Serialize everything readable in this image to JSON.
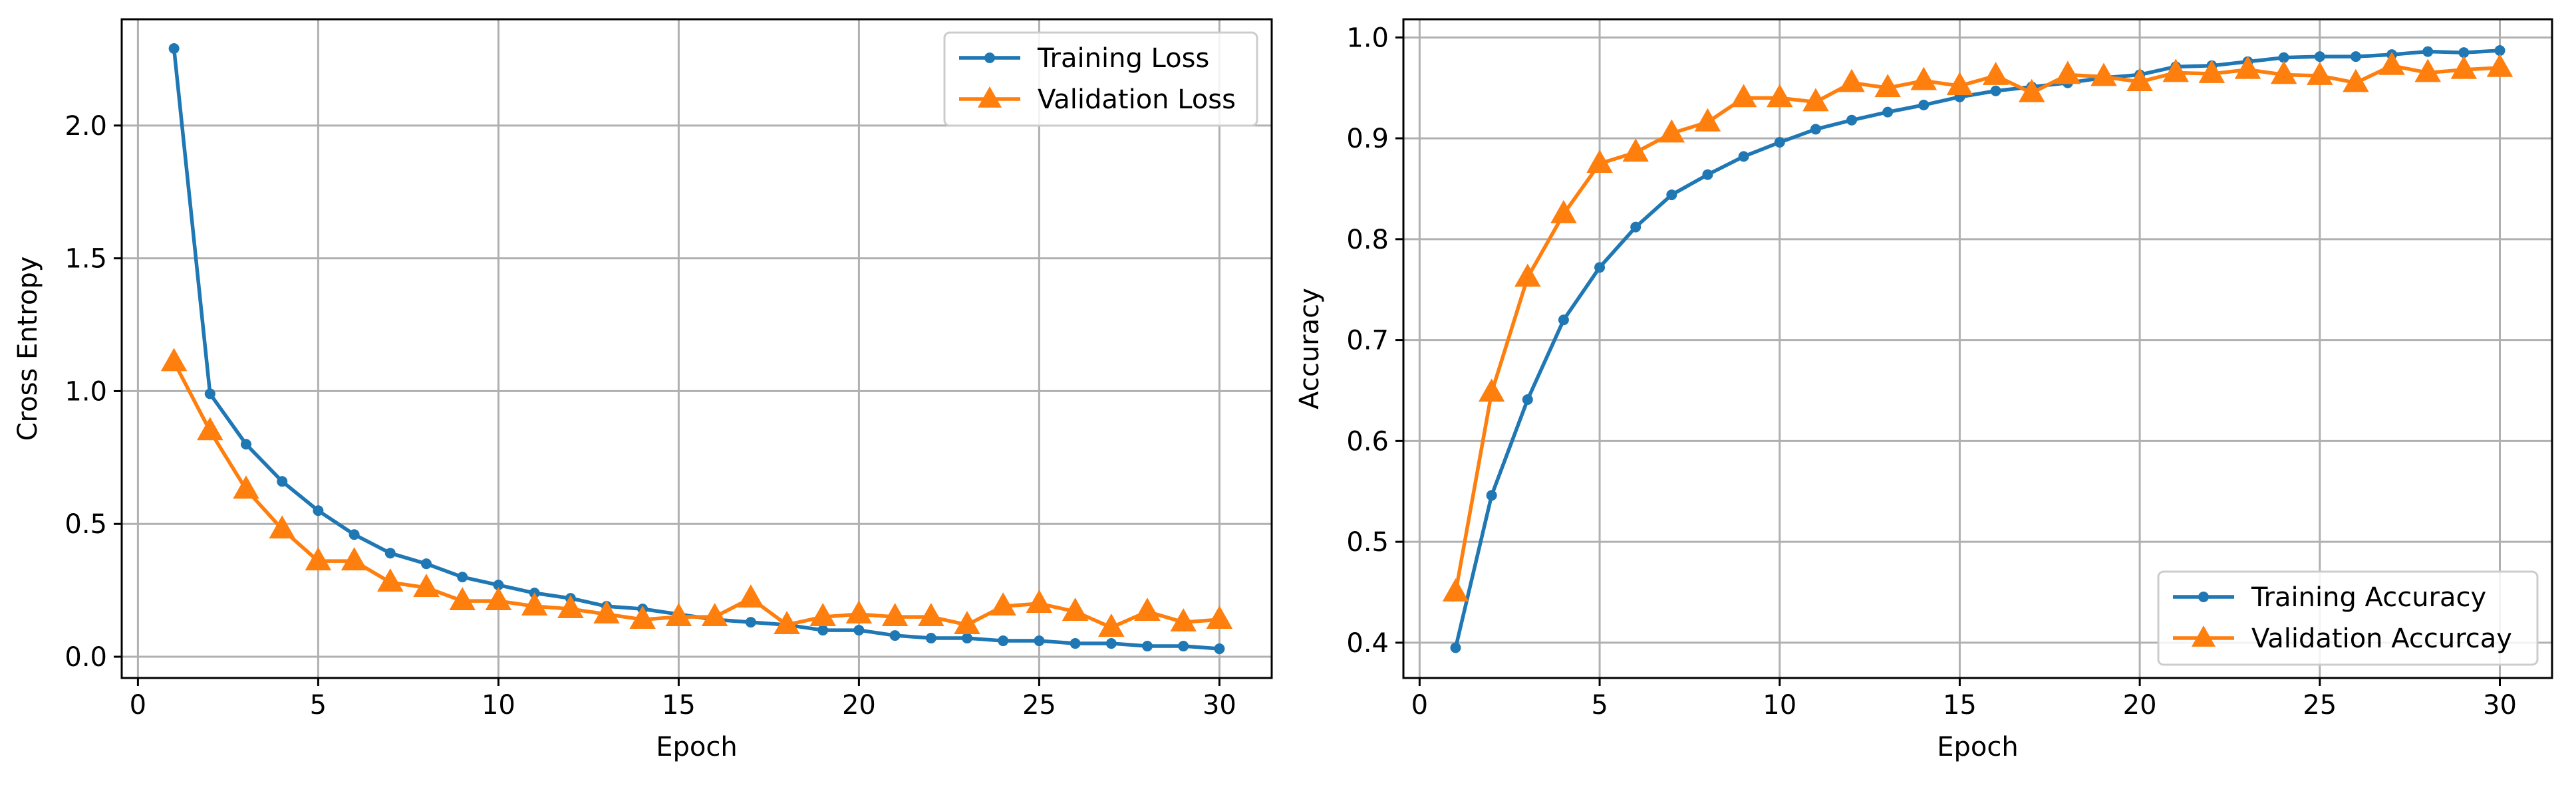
{
  "chart_data": [
    {
      "type": "line",
      "title": "",
      "xlabel": "Epoch",
      "ylabel": "Cross Entropy",
      "xlim": [
        -0.45,
        31.45
      ],
      "ylim": [
        -0.08,
        2.4
      ],
      "xticks": [
        0,
        5,
        10,
        15,
        20,
        25,
        30
      ],
      "yticks": [
        0.0,
        0.5,
        1.0,
        1.5,
        2.0
      ],
      "ytick_labels": [
        "0.0",
        "0.5",
        "1.0",
        "1.5",
        "2.0"
      ],
      "grid": true,
      "legend_position": "upper right",
      "x": [
        1,
        2,
        3,
        4,
        5,
        6,
        7,
        8,
        9,
        10,
        11,
        12,
        13,
        14,
        15,
        16,
        17,
        18,
        19,
        20,
        21,
        22,
        23,
        24,
        25,
        26,
        27,
        28,
        29,
        30
      ],
      "series": [
        {
          "name": "Training Loss",
          "color": "#1f77b4",
          "marker": "circle",
          "values": [
            2.29,
            0.99,
            0.8,
            0.66,
            0.55,
            0.46,
            0.39,
            0.35,
            0.3,
            0.27,
            0.24,
            0.22,
            0.19,
            0.18,
            0.16,
            0.14,
            0.13,
            0.12,
            0.1,
            0.1,
            0.08,
            0.07,
            0.07,
            0.06,
            0.06,
            0.05,
            0.05,
            0.04,
            0.04,
            0.03
          ]
        },
        {
          "name": "Validation Loss",
          "color": "#ff7f0e",
          "marker": "triangle",
          "values": [
            1.11,
            0.85,
            0.63,
            0.48,
            0.36,
            0.36,
            0.28,
            0.26,
            0.21,
            0.21,
            0.19,
            0.18,
            0.16,
            0.14,
            0.15,
            0.15,
            0.22,
            0.12,
            0.15,
            0.16,
            0.15,
            0.15,
            0.12,
            0.19,
            0.2,
            0.17,
            0.11,
            0.17,
            0.13,
            0.14
          ]
        }
      ]
    },
    {
      "type": "line",
      "title": "",
      "xlabel": "Epoch",
      "ylabel": "Accuracy",
      "xlim": [
        -0.45,
        31.45
      ],
      "ylim": [
        0.365,
        1.018
      ],
      "xticks": [
        0,
        5,
        10,
        15,
        20,
        25,
        30
      ],
      "yticks": [
        0.4,
        0.5,
        0.6,
        0.7,
        0.8,
        0.9,
        1.0
      ],
      "ytick_labels": [
        "0.4",
        "0.5",
        "0.6",
        "0.7",
        "0.8",
        "0.9",
        "1.0"
      ],
      "grid": true,
      "legend_position": "lower right",
      "x": [
        1,
        2,
        3,
        4,
        5,
        6,
        7,
        8,
        9,
        10,
        11,
        12,
        13,
        14,
        15,
        16,
        17,
        18,
        19,
        20,
        21,
        22,
        23,
        24,
        25,
        26,
        27,
        28,
        29,
        30
      ],
      "series": [
        {
          "name": "Training Accuracy",
          "color": "#1f77b4",
          "marker": "circle",
          "values": [
            0.395,
            0.546,
            0.641,
            0.72,
            0.772,
            0.812,
            0.844,
            0.864,
            0.882,
            0.896,
            0.909,
            0.918,
            0.926,
            0.933,
            0.941,
            0.947,
            0.951,
            0.955,
            0.96,
            0.963,
            0.971,
            0.972,
            0.976,
            0.98,
            0.981,
            0.981,
            0.983,
            0.986,
            0.985,
            0.987
          ]
        },
        {
          "name": "Validation Accurcay",
          "color": "#ff7f0e",
          "marker": "triangle",
          "values": [
            0.45,
            0.648,
            0.762,
            0.825,
            0.875,
            0.886,
            0.905,
            0.916,
            0.94,
            0.94,
            0.936,
            0.955,
            0.95,
            0.957,
            0.952,
            0.962,
            0.945,
            0.963,
            0.961,
            0.956,
            0.965,
            0.964,
            0.968,
            0.963,
            0.962,
            0.955,
            0.972,
            0.965,
            0.968,
            0.97
          ]
        }
      ]
    }
  ]
}
